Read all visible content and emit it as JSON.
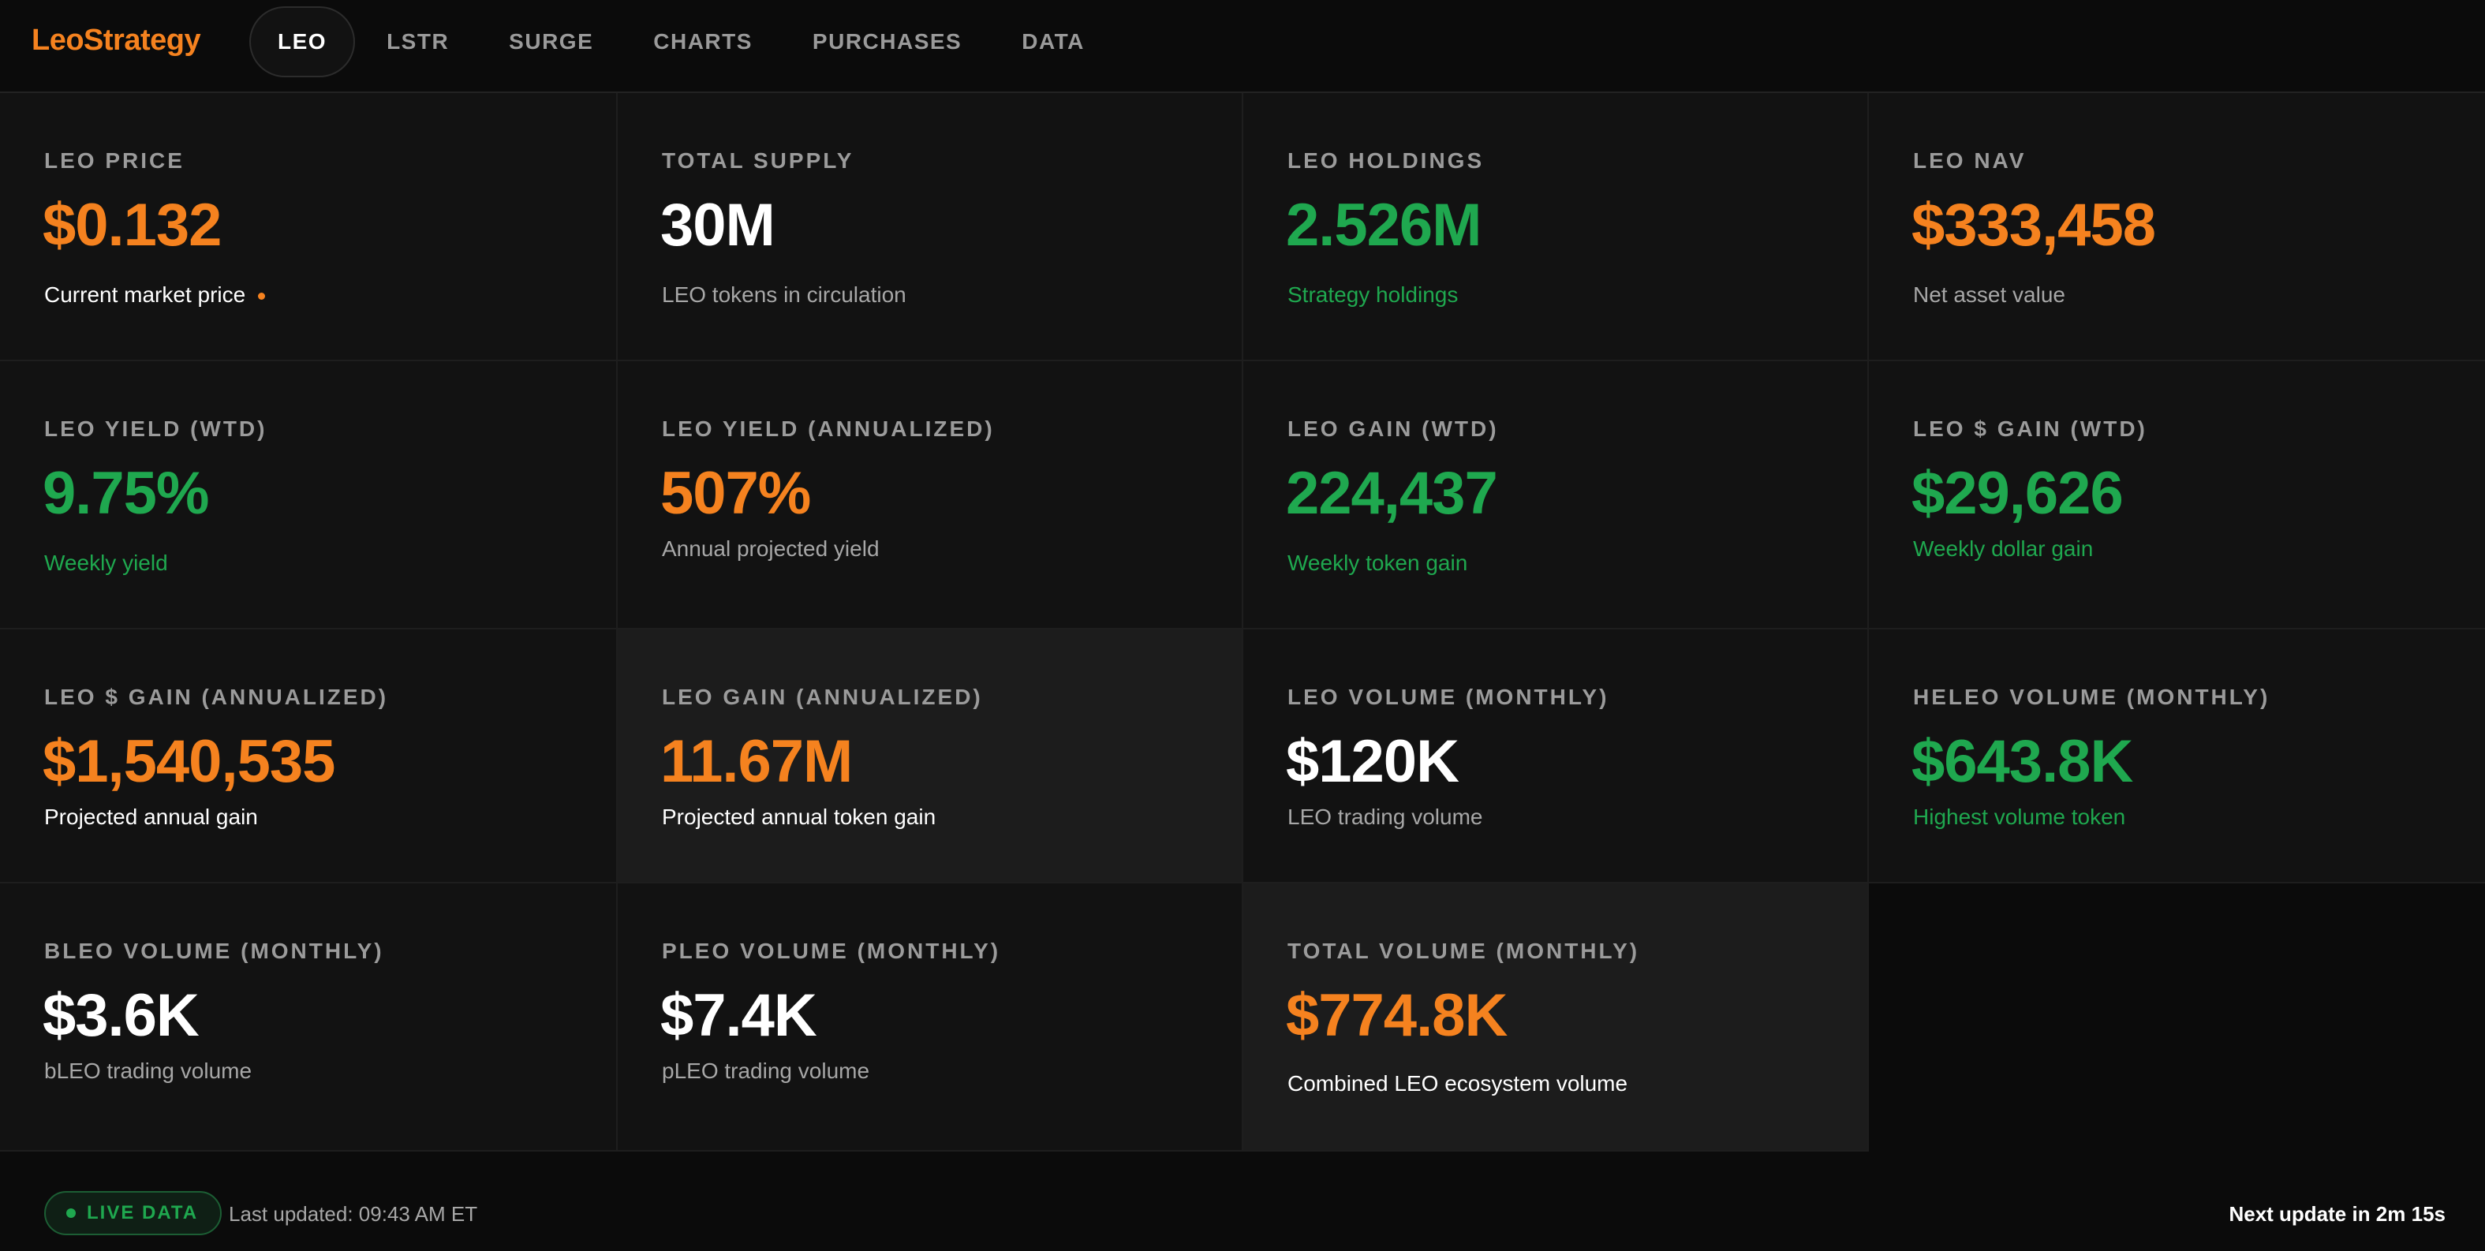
{
  "app": {
    "logo": "LeoStrategy"
  },
  "nav": {
    "tabs": [
      {
        "label": "LEO",
        "active": true
      },
      {
        "label": "LSTR",
        "active": false
      },
      {
        "label": "SURGE",
        "active": false
      },
      {
        "label": "CHARTS",
        "active": false
      },
      {
        "label": "PURCHASES",
        "active": false
      },
      {
        "label": "DATA",
        "active": false
      }
    ]
  },
  "cards": {
    "leo_price": {
      "label": "LEO PRICE",
      "value": "$0.132",
      "sub": "Current market price"
    },
    "total_supply": {
      "label": "TOTAL SUPPLY",
      "value": "30M",
      "sub": "LEO tokens in circulation"
    },
    "leo_holdings": {
      "label": "LEO HOLDINGS",
      "value": "2.526M",
      "sub": "Strategy holdings"
    },
    "leo_nav": {
      "label": "LEO NAV",
      "value": "$333,458",
      "sub": "Net asset value"
    },
    "yield_wtd": {
      "label": "LEO YIELD (WTD)",
      "value": "9.75%",
      "sub": "Weekly yield"
    },
    "yield_annualized": {
      "label": "LEO YIELD (ANNUALIZED)",
      "value": "507%",
      "sub": "Annual projected yield"
    },
    "gain_wtd": {
      "label": "LEO GAIN (WTD)",
      "value": "224,437",
      "sub": "Weekly token gain"
    },
    "dollar_gain_wtd": {
      "label": "LEO $ GAIN (WTD)",
      "value": "$29,626",
      "sub": "Weekly dollar gain"
    },
    "dollar_gain_annualized": {
      "label": "LEO $ GAIN (ANNUALIZED)",
      "value": "$1,540,535",
      "sub": "Projected annual gain"
    },
    "gain_annualized": {
      "label": "LEO GAIN (ANNUALIZED)",
      "value": "11.67M",
      "sub": "Projected annual token gain"
    },
    "volume_monthly": {
      "label": "LEO VOLUME (MONTHLY)",
      "value": "$120K",
      "sub": "LEO trading volume"
    },
    "heleo_volume": {
      "label": "HELEO VOLUME (MONTHLY)",
      "value": "$643.8K",
      "sub": "Highest volume token"
    },
    "bleo_volume": {
      "label": "BLEO VOLUME (MONTHLY)",
      "value": "$3.6K",
      "sub": "bLEO trading volume"
    },
    "pleo_volume": {
      "label": "PLEO VOLUME (MONTHLY)",
      "value": "$7.4K",
      "sub": "pLEO trading volume"
    },
    "total_volume": {
      "label": "TOTAL VOLUME (MONTHLY)",
      "value": "$774.8K",
      "sub": "Combined LEO ecosystem volume"
    }
  },
  "footer": {
    "live_label": "LIVE DATA",
    "last_updated": "Last updated: 09:43 AM ET",
    "next_update": "Next update in 2m 15s"
  },
  "colors": {
    "accent_orange": "#f5821f",
    "positive_green": "#1fa84f",
    "background": "#0b0b0b",
    "card": "#121212",
    "card_highlight": "#1c1c1c"
  }
}
